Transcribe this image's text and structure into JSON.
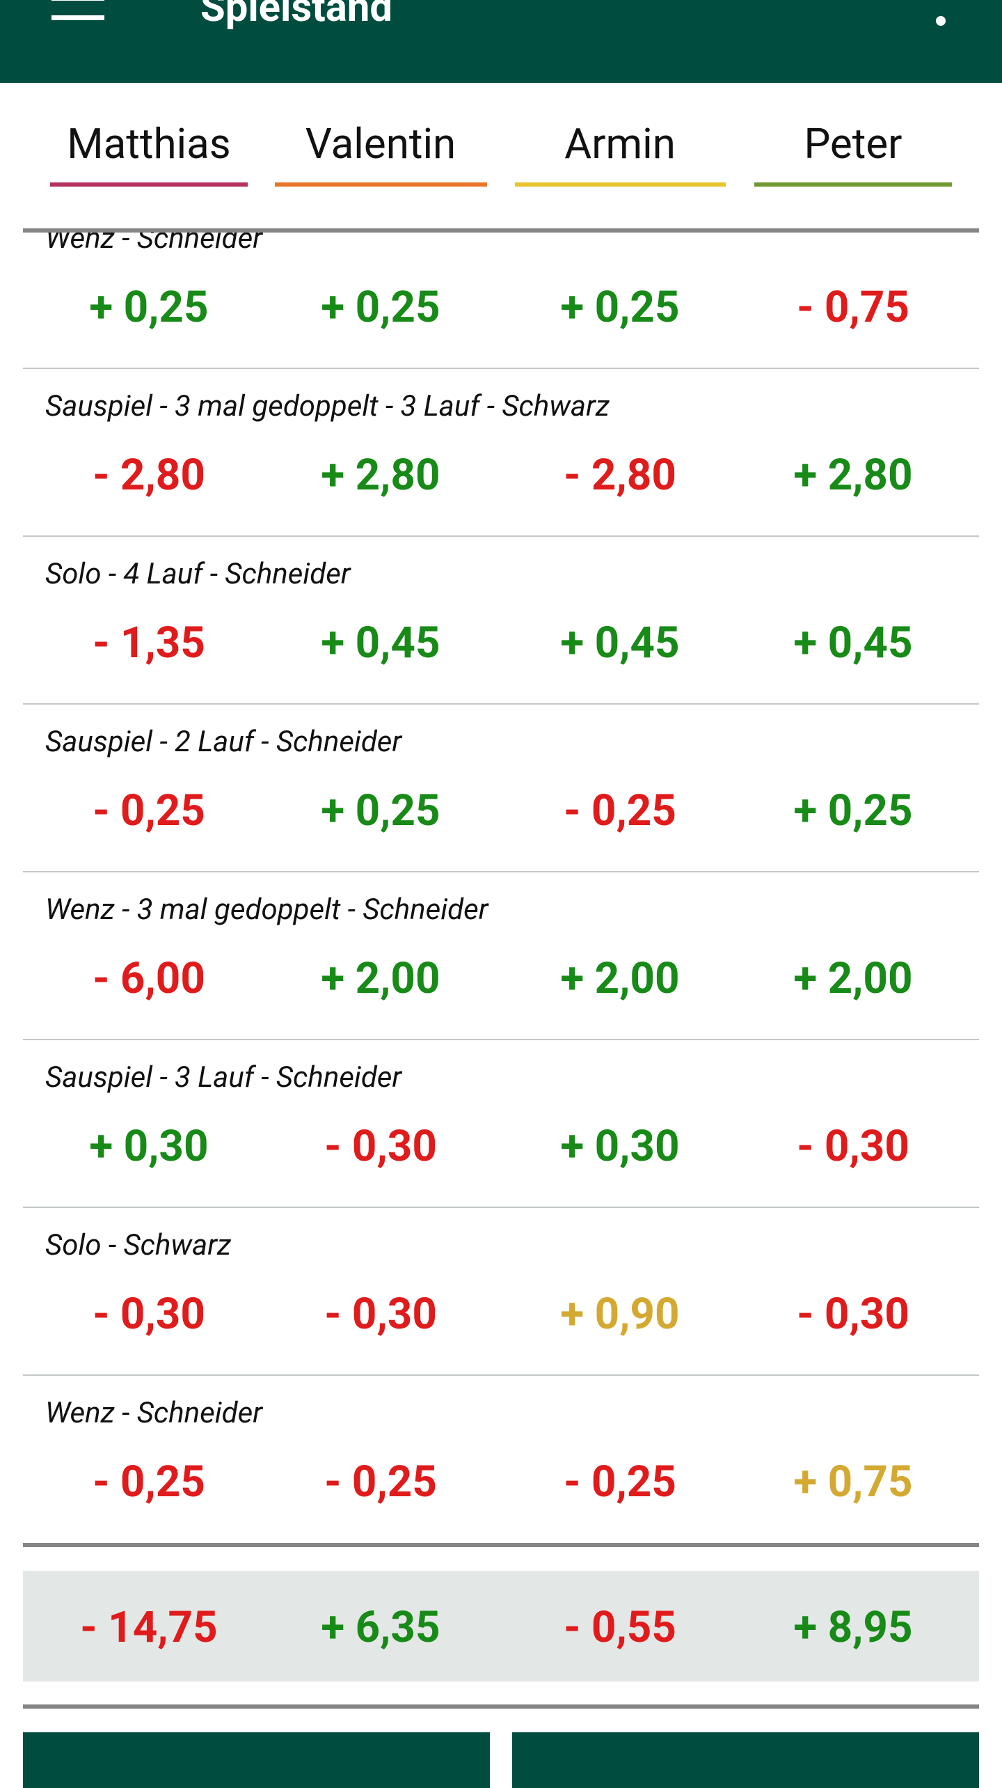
{
  "app_bar": {
    "title": "Spielstand"
  },
  "players": [
    {
      "name": "Matthias",
      "color": "#b4325c"
    },
    {
      "name": "Valentin",
      "color": "#e8762a"
    },
    {
      "name": "Armin",
      "color": "#e8c52c"
    },
    {
      "name": "Peter",
      "color": "#6f9a32"
    }
  ],
  "rows": [
    {
      "label": "Wenz - Schneider",
      "scores": [
        "+ 0,25",
        "+ 0,25",
        "+ 0,25",
        "- 0,75"
      ],
      "colors": [
        "#178a17",
        "#178a17",
        "#178a17",
        "#e01b1b"
      ]
    },
    {
      "label": "Sauspiel - 3 mal gedoppelt - 3 Lauf - Schwarz",
      "scores": [
        "- 2,80",
        "+ 2,80",
        "- 2,80",
        "+ 2,80"
      ],
      "colors": [
        "#e01b1b",
        "#178a17",
        "#e01b1b",
        "#178a17"
      ]
    },
    {
      "label": "Solo - 4 Lauf - Schneider",
      "scores": [
        "- 1,35",
        "+ 0,45",
        "+ 0,45",
        "+ 0,45"
      ],
      "colors": [
        "#e01b1b",
        "#178a17",
        "#178a17",
        "#178a17"
      ]
    },
    {
      "label": "Sauspiel - 2 Lauf - Schneider",
      "scores": [
        "- 0,25",
        "+ 0,25",
        "- 0,25",
        "+ 0,25"
      ],
      "colors": [
        "#e01b1b",
        "#178a17",
        "#e01b1b",
        "#178a17"
      ]
    },
    {
      "label": "Wenz - 3 mal gedoppelt - Schneider",
      "scores": [
        "- 6,00",
        "+ 2,00",
        "+ 2,00",
        "+ 2,00"
      ],
      "colors": [
        "#e01b1b",
        "#178a17",
        "#178a17",
        "#178a17"
      ]
    },
    {
      "label": "Sauspiel - 3 Lauf - Schneider",
      "scores": [
        "+ 0,30",
        "- 0,30",
        "+ 0,30",
        "- 0,30"
      ],
      "colors": [
        "#178a17",
        "#e01b1b",
        "#178a17",
        "#e01b1b"
      ]
    },
    {
      "label": "Solo - Schwarz",
      "scores": [
        "- 0,30",
        "- 0,30",
        "+ 0,90",
        "- 0,30"
      ],
      "colors": [
        "#e01b1b",
        "#e01b1b",
        "#d4a931",
        "#e01b1b"
      ]
    },
    {
      "label": "Wenz - Schneider",
      "scores": [
        "- 0,25",
        "- 0,25",
        "- 0,25",
        "+ 0,75"
      ],
      "colors": [
        "#e01b1b",
        "#e01b1b",
        "#e01b1b",
        "#d4a931"
      ]
    }
  ],
  "total": {
    "scores": [
      "- 14,75",
      "+ 6,35",
      "- 0,55",
      "+ 8,95"
    ],
    "colors": [
      "#e01b1b",
      "#178a17",
      "#e01b1b",
      "#178a17"
    ]
  }
}
